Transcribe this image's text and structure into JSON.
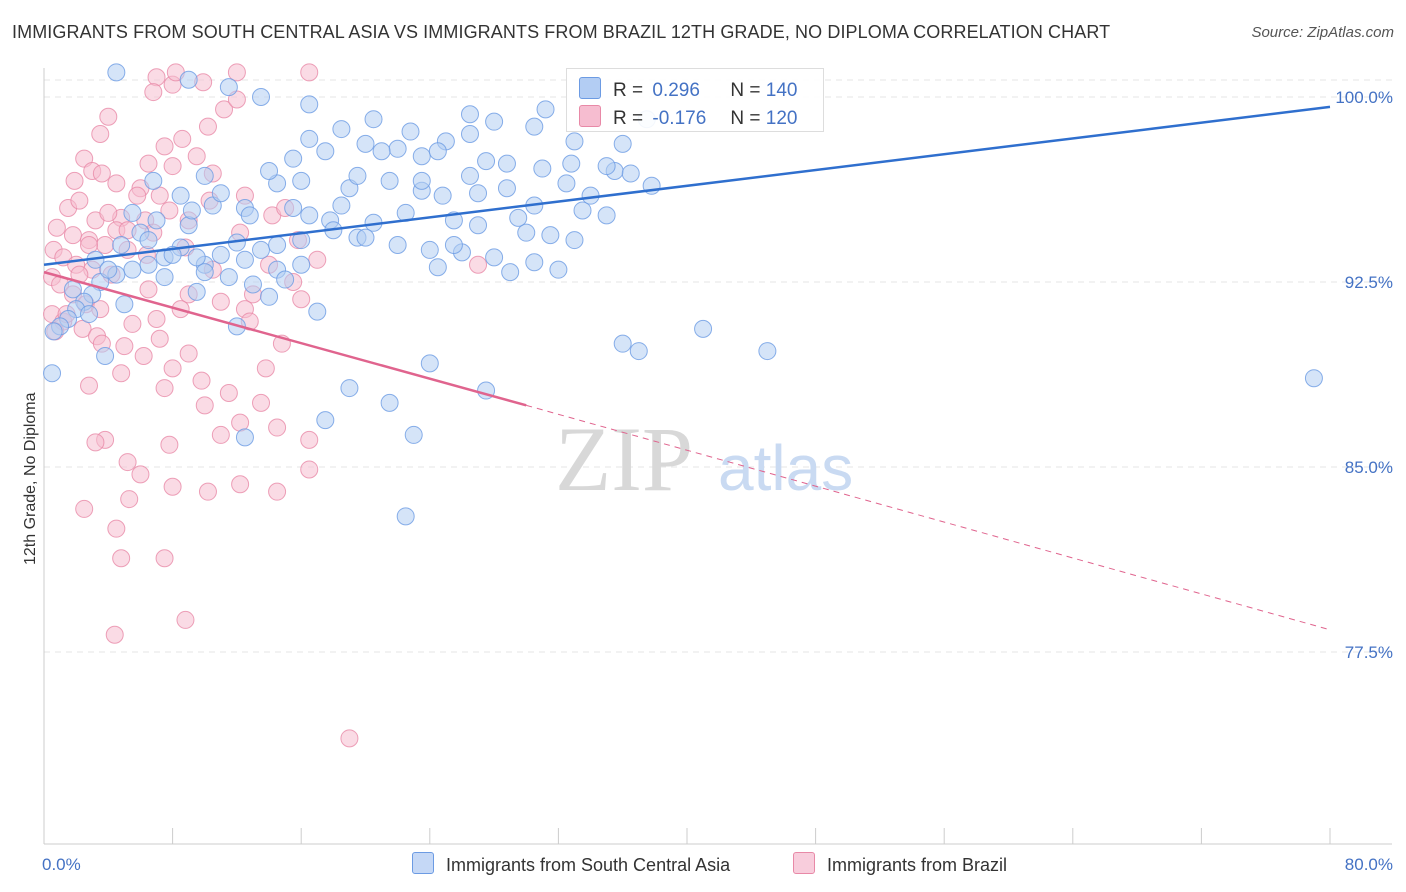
{
  "title": "IMMIGRANTS FROM SOUTH CENTRAL ASIA VS IMMIGRANTS FROM BRAZIL 12TH GRADE, NO DIPLOMA CORRELATION CHART",
  "source": "Source: ZipAtlas.com",
  "watermark": {
    "zip": "ZIP",
    "atlas": "atlas"
  },
  "legend_top": {
    "row1": {
      "r_label": "R =",
      "r_value": "0.296",
      "n_label": "N =",
      "n_value": "140"
    },
    "row2": {
      "r_label": "R =",
      "r_value": "-0.176",
      "n_label": "N =",
      "n_value": "120"
    }
  },
  "colors": {
    "blue": "#6c9be3",
    "blue_fill": "#b3cdf3",
    "blue_line": "#2f6fce",
    "pink": "#e889a7",
    "pink_fill": "#f6bdd0",
    "pink_line": "#e0648e",
    "tick_text": "#4472c4"
  },
  "chart_data": {
    "type": "scatter",
    "title": "IMMIGRANTS FROM SOUTH CENTRAL ASIA VS IMMIGRANTS FROM BRAZIL 12TH GRADE, NO DIPLOMA CORRELATION CHART",
    "xlabel": "",
    "ylabel": "12th Grade, No Diploma",
    "xlim": [
      0,
      80
    ],
    "ylim": [
      70.5,
      101.5
    ],
    "x_ticks": [
      "0.0%",
      "80.0%"
    ],
    "y_ticks": [
      {
        "value": 100.0,
        "label": "100.0%"
      },
      {
        "value": 92.5,
        "label": "92.5%"
      },
      {
        "value": 85.0,
        "label": "85.0%"
      },
      {
        "value": 77.5,
        "label": "77.5%"
      }
    ],
    "grid": "horizontal dashed",
    "legend_position": "bottom",
    "series": [
      {
        "name": "Immigrants from South Central Asia",
        "r": 0.296,
        "n": 140,
        "trend": {
          "x": [
            0,
            80
          ],
          "y": [
            93.2,
            99.6
          ],
          "style": "solid"
        },
        "points": [
          [
            4.5,
            101.0
          ],
          [
            9.0,
            100.7
          ],
          [
            11.5,
            100.4
          ],
          [
            13.5,
            100.0
          ],
          [
            16.5,
            99.7
          ],
          [
            20.5,
            99.1
          ],
          [
            28.0,
            99.0
          ],
          [
            30.5,
            98.8
          ],
          [
            18.5,
            98.7
          ],
          [
            25.0,
            98.2
          ],
          [
            20.0,
            98.1
          ],
          [
            22.0,
            97.9
          ],
          [
            23.5,
            97.6
          ],
          [
            27.5,
            97.4
          ],
          [
            32.8,
            97.3
          ],
          [
            35.5,
            97.0
          ],
          [
            36.5,
            96.9
          ],
          [
            37.8,
            96.4
          ],
          [
            14.5,
            96.5
          ],
          [
            16.0,
            96.6
          ],
          [
            19.0,
            96.3
          ],
          [
            21.5,
            96.6
          ],
          [
            23.5,
            96.2
          ],
          [
            24.8,
            96.0
          ],
          [
            26.5,
            96.8
          ],
          [
            28.8,
            96.3
          ],
          [
            30.5,
            95.6
          ],
          [
            33.5,
            95.4
          ],
          [
            35.0,
            95.2
          ],
          [
            15.5,
            95.5
          ],
          [
            16.5,
            95.2
          ],
          [
            17.8,
            95.0
          ],
          [
            20.5,
            94.9
          ],
          [
            22.5,
            95.3
          ],
          [
            25.5,
            95.0
          ],
          [
            27.0,
            94.8
          ],
          [
            30.0,
            94.5
          ],
          [
            33.0,
            94.2
          ],
          [
            18.0,
            94.6
          ],
          [
            19.5,
            94.3
          ],
          [
            22.0,
            94.0
          ],
          [
            24.0,
            93.8
          ],
          [
            26.0,
            93.7
          ],
          [
            28.0,
            93.5
          ],
          [
            30.5,
            93.3
          ],
          [
            32.0,
            93.0
          ],
          [
            13.5,
            93.8
          ],
          [
            12.0,
            94.1
          ],
          [
            11.0,
            93.6
          ],
          [
            10.0,
            93.2
          ],
          [
            8.5,
            93.9
          ],
          [
            7.5,
            93.5
          ],
          [
            6.5,
            93.2
          ],
          [
            5.5,
            93.0
          ],
          [
            4.5,
            92.8
          ],
          [
            3.5,
            92.5
          ],
          [
            3.0,
            92.0
          ],
          [
            2.5,
            91.7
          ],
          [
            2.0,
            91.4
          ],
          [
            1.5,
            91.0
          ],
          [
            1.0,
            90.7
          ],
          [
            1.8,
            92.2
          ],
          [
            3.2,
            93.4
          ],
          [
            4.8,
            94.0
          ],
          [
            6.0,
            94.5
          ],
          [
            7.0,
            95.0
          ],
          [
            8.0,
            93.6
          ],
          [
            9.0,
            94.8
          ],
          [
            10.5,
            95.6
          ],
          [
            12.5,
            95.5
          ],
          [
            13.0,
            92.4
          ],
          [
            14.5,
            93.0
          ],
          [
            15.0,
            92.6
          ],
          [
            16.0,
            94.2
          ],
          [
            17.0,
            91.3
          ],
          [
            12.0,
            90.7
          ],
          [
            5.0,
            91.6
          ],
          [
            9.5,
            92.1
          ],
          [
            11.5,
            92.7
          ],
          [
            14.0,
            91.9
          ],
          [
            19.0,
            88.2
          ],
          [
            21.5,
            87.6
          ],
          [
            24.0,
            89.2
          ],
          [
            27.5,
            88.1
          ],
          [
            36.0,
            90.0
          ],
          [
            45.0,
            89.7
          ],
          [
            37.0,
            89.7
          ],
          [
            41.0,
            90.6
          ],
          [
            79.0,
            88.6
          ],
          [
            23.0,
            86.3
          ],
          [
            17.5,
            86.9
          ],
          [
            12.5,
            86.2
          ],
          [
            22.5,
            83.0
          ],
          [
            0.5,
            88.8
          ],
          [
            0.6,
            90.5
          ],
          [
            3.8,
            89.5
          ],
          [
            14.0,
            97.0
          ],
          [
            10.0,
            96.8
          ],
          [
            21.0,
            97.8
          ],
          [
            31.0,
            97.1
          ],
          [
            36.0,
            98.1
          ],
          [
            37.5,
            99.1
          ],
          [
            26.5,
            98.5
          ],
          [
            16.5,
            98.3
          ],
          [
            18.5,
            95.6
          ],
          [
            24.5,
            93.1
          ],
          [
            29.0,
            92.9
          ],
          [
            25.5,
            94.0
          ],
          [
            34.0,
            96.0
          ],
          [
            29.5,
            95.1
          ],
          [
            27.0,
            96.1
          ],
          [
            31.5,
            94.4
          ],
          [
            32.5,
            96.5
          ],
          [
            35.0,
            97.2
          ],
          [
            20.0,
            94.3
          ],
          [
            14.5,
            94.0
          ],
          [
            12.5,
            93.4
          ],
          [
            9.5,
            93.5
          ],
          [
            7.5,
            92.7
          ],
          [
            6.5,
            94.2
          ],
          [
            4.0,
            93.0
          ],
          [
            2.8,
            91.2
          ],
          [
            8.5,
            96.0
          ],
          [
            10.0,
            92.9
          ],
          [
            15.5,
            97.5
          ],
          [
            17.5,
            97.8
          ],
          [
            19.5,
            96.8
          ],
          [
            22.8,
            98.6
          ],
          [
            26.5,
            99.3
          ],
          [
            31.2,
            99.5
          ],
          [
            23.5,
            96.6
          ],
          [
            28.8,
            97.3
          ],
          [
            33.0,
            98.2
          ],
          [
            24.5,
            97.8
          ],
          [
            16.0,
            93.2
          ],
          [
            12.8,
            95.2
          ],
          [
            11.0,
            96.1
          ],
          [
            5.5,
            95.3
          ],
          [
            6.8,
            96.6
          ],
          [
            9.2,
            95.4
          ]
        ]
      },
      {
        "name": "Immigrants from Brazil",
        "r": -0.176,
        "n": 120,
        "trend": {
          "x": [
            0,
            30
          ],
          "y": [
            92.9,
            87.5
          ],
          "dashed_to": [
            80,
            78.4
          ],
          "style": "solid-then-dashed"
        },
        "points": [
          [
            7.0,
            100.8
          ],
          [
            8.0,
            100.5
          ],
          [
            8.2,
            101.0
          ],
          [
            12.0,
            101.0
          ],
          [
            16.5,
            101.0
          ],
          [
            6.8,
            100.2
          ],
          [
            4.0,
            99.2
          ],
          [
            3.5,
            98.5
          ],
          [
            7.5,
            98.0
          ],
          [
            2.5,
            97.5
          ],
          [
            3.0,
            97.0
          ],
          [
            6.5,
            97.3
          ],
          [
            8.0,
            97.2
          ],
          [
            4.5,
            96.5
          ],
          [
            6.0,
            96.3
          ],
          [
            7.2,
            96.0
          ],
          [
            1.5,
            95.5
          ],
          [
            2.2,
            95.8
          ],
          [
            3.2,
            95.0
          ],
          [
            4.8,
            95.1
          ],
          [
            6.3,
            95.0
          ],
          [
            7.8,
            95.4
          ],
          [
            9.0,
            95.0
          ],
          [
            0.8,
            94.7
          ],
          [
            1.8,
            94.4
          ],
          [
            2.8,
            94.2
          ],
          [
            3.8,
            94.0
          ],
          [
            5.2,
            93.8
          ],
          [
            6.8,
            94.5
          ],
          [
            0.6,
            93.8
          ],
          [
            1.2,
            93.5
          ],
          [
            2.0,
            93.2
          ],
          [
            3.0,
            93.0
          ],
          [
            4.2,
            92.8
          ],
          [
            0.5,
            92.7
          ],
          [
            1.0,
            92.4
          ],
          [
            1.8,
            92.0
          ],
          [
            2.6,
            91.6
          ],
          [
            3.5,
            91.4
          ],
          [
            0.5,
            91.2
          ],
          [
            1.2,
            90.9
          ],
          [
            2.4,
            90.6
          ],
          [
            3.3,
            90.3
          ],
          [
            5.0,
            89.9
          ],
          [
            6.2,
            89.5
          ],
          [
            8.0,
            89.0
          ],
          [
            9.8,
            88.5
          ],
          [
            11.5,
            88.0
          ],
          [
            13.5,
            87.6
          ],
          [
            2.8,
            88.3
          ],
          [
            4.8,
            88.8
          ],
          [
            7.5,
            88.2
          ],
          [
            10.0,
            87.5
          ],
          [
            12.2,
            86.8
          ],
          [
            14.5,
            86.6
          ],
          [
            16.5,
            86.1
          ],
          [
            3.8,
            86.1
          ],
          [
            5.2,
            85.2
          ],
          [
            6.0,
            84.7
          ],
          [
            8.0,
            84.2
          ],
          [
            10.2,
            84.0
          ],
          [
            12.2,
            84.3
          ],
          [
            14.5,
            84.0
          ],
          [
            16.5,
            84.9
          ],
          [
            5.3,
            83.7
          ],
          [
            4.5,
            82.5
          ],
          [
            4.8,
            81.3
          ],
          [
            7.5,
            81.3
          ],
          [
            4.4,
            78.2
          ],
          [
            8.8,
            78.8
          ],
          [
            19.0,
            74.0
          ],
          [
            27.0,
            93.2
          ],
          [
            17.0,
            93.4
          ],
          [
            15.5,
            92.5
          ],
          [
            13.0,
            92.0
          ],
          [
            12.5,
            91.4
          ],
          [
            11.0,
            91.7
          ],
          [
            9.0,
            92.0
          ],
          [
            7.0,
            91.0
          ],
          [
            5.5,
            90.8
          ],
          [
            3.6,
            90.0
          ],
          [
            8.5,
            91.4
          ],
          [
            10.5,
            93.0
          ],
          [
            14.0,
            93.2
          ],
          [
            15.8,
            94.2
          ],
          [
            14.2,
            95.2
          ],
          [
            12.5,
            96.0
          ],
          [
            10.5,
            96.9
          ],
          [
            9.5,
            97.6
          ],
          [
            8.6,
            98.3
          ],
          [
            10.2,
            98.8
          ],
          [
            11.2,
            99.5
          ],
          [
            12.0,
            99.9
          ],
          [
            9.9,
            100.6
          ],
          [
            5.8,
            96.0
          ],
          [
            6.4,
            93.6
          ],
          [
            4.5,
            94.6
          ],
          [
            2.2,
            92.8
          ],
          [
            1.4,
            91.2
          ],
          [
            0.7,
            90.5
          ],
          [
            5.2,
            94.6
          ],
          [
            4.0,
            95.3
          ],
          [
            3.6,
            96.9
          ],
          [
            2.8,
            94.0
          ],
          [
            1.9,
            96.6
          ],
          [
            6.5,
            92.2
          ],
          [
            7.2,
            90.2
          ],
          [
            9.0,
            89.6
          ],
          [
            12.8,
            90.9
          ],
          [
            15.0,
            95.5
          ],
          [
            16.0,
            91.8
          ],
          [
            13.8,
            89.0
          ],
          [
            7.8,
            85.9
          ],
          [
            11.0,
            86.3
          ],
          [
            3.2,
            86.0
          ],
          [
            2.5,
            83.3
          ],
          [
            12.2,
            94.5
          ],
          [
            10.3,
            95.8
          ],
          [
            8.8,
            93.9
          ],
          [
            14.8,
            90.0
          ]
        ]
      }
    ]
  },
  "legend_bottom": [
    {
      "label": "Immigrants from South Central Asia"
    },
    {
      "label": "Immigrants from Brazil"
    }
  ]
}
